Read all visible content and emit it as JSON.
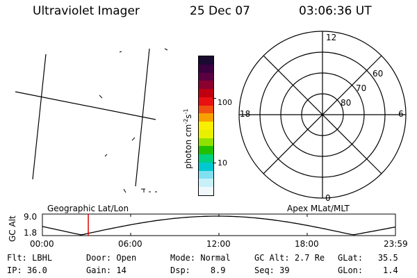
{
  "header": {
    "title": "Ultraviolet Imager",
    "date": "25 Dec 07",
    "time": "03:06:36 UT"
  },
  "colorbar": {
    "unit_label": "photon cm-2s-1",
    "unit_main": "photon cm",
    "unit_exp1": "-2",
    "unit_mid": "s",
    "unit_exp2": "-1",
    "tick_100": "100",
    "tick_10": "10",
    "colors": [
      "#1a0a30",
      "#3a0040",
      "#5a0040",
      "#8a0030",
      "#c00010",
      "#e81010",
      "#f05010",
      "#f8a000",
      "#f8f000",
      "#e8f000",
      "#90e000",
      "#20c000",
      "#00d080",
      "#00c8d0",
      "#80e0f0",
      "#c8f0f8",
      "#f0f8fc"
    ]
  },
  "polar_plot": {
    "label_top": "12",
    "label_bottom": "0",
    "label_left": "18",
    "label_right": "6",
    "label_60": "60",
    "label_70": "70",
    "label_80": "80"
  },
  "timeline": {
    "left_title": "Geographic Lat/Lon",
    "right_title": "Apex MLat/MLT",
    "y_axis_label": "GC Alt",
    "y_max": "9.0",
    "y_min": "1.8",
    "ticks": [
      "00:00",
      "06:00",
      "12:00",
      "18:00",
      "23:59"
    ],
    "current_time_fraction": 0.13,
    "line_color": "#000000",
    "marker_color": "#e00000"
  },
  "info": {
    "row1": [
      {
        "label": "Flt:",
        "value": "LBHL"
      },
      {
        "label": "Door:",
        "value": "Open"
      },
      {
        "label": "Mode:",
        "value": "Normal"
      },
      {
        "label": "GC Alt:",
        "value": "2.7 Re"
      },
      {
        "label": "GLat:",
        "value": "35.5"
      }
    ],
    "row2": [
      {
        "label": "IP:",
        "value": "36.0"
      },
      {
        "label": "Gain:",
        "value": "14"
      },
      {
        "label": "Dsp:",
        "value": "8.9"
      },
      {
        "label": "Seq:",
        "value": "39"
      },
      {
        "label": "GLon:",
        "value": "1.4"
      }
    ]
  }
}
